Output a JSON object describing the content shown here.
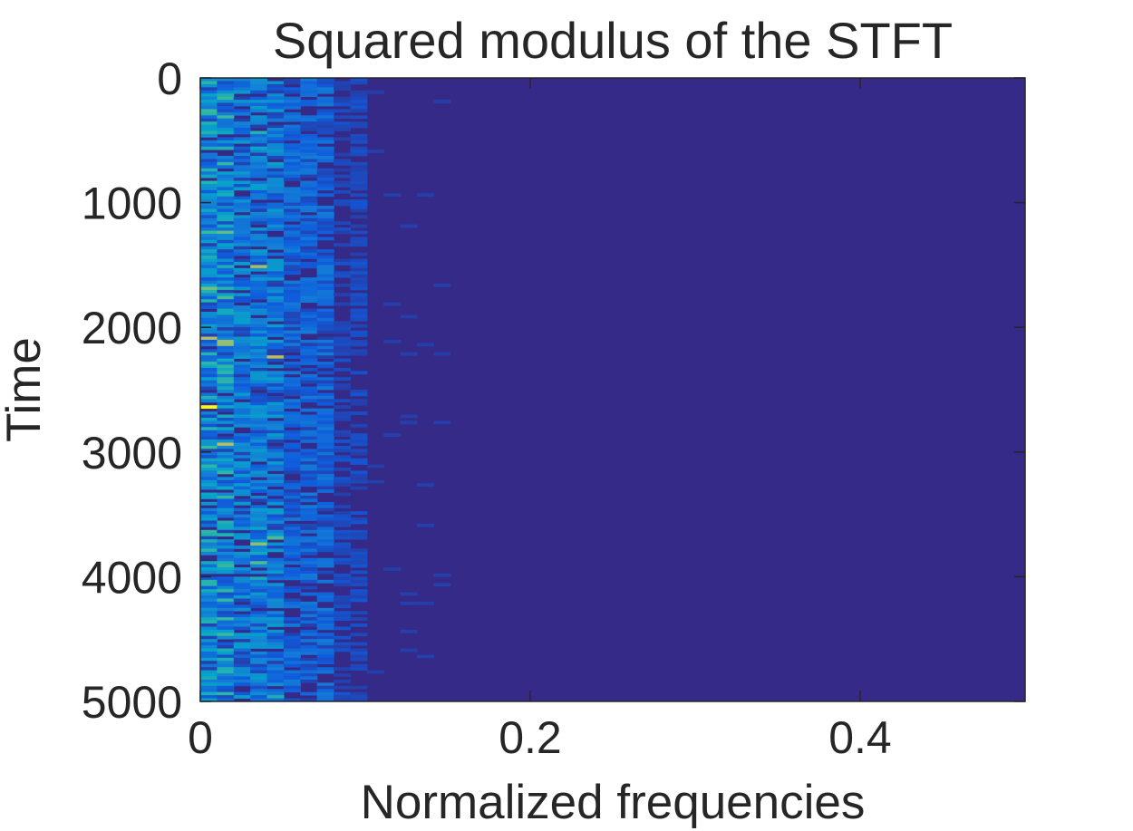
{
  "chart_data": {
    "type": "heatmap",
    "title": "Squared modulus of the STFT",
    "xlabel": "Normalized frequencies",
    "ylabel": "Time",
    "xlim": [
      0,
      0.5
    ],
    "ylim": [
      0,
      5000
    ],
    "y_reversed": true,
    "x_ticks": [
      {
        "value": 0,
        "label": "0"
      },
      {
        "value": 0.2,
        "label": "0.2"
      },
      {
        "value": 0.4,
        "label": "0.4"
      }
    ],
    "y_ticks": [
      {
        "value": 0,
        "label": "0"
      },
      {
        "value": 1000,
        "label": "1000"
      },
      {
        "value": 2000,
        "label": "2000"
      },
      {
        "value": 3000,
        "label": "3000"
      },
      {
        "value": 4000,
        "label": "4000"
      },
      {
        "value": 5000,
        "label": "5000"
      }
    ],
    "grid": false,
    "colormap": "parula",
    "colors": {
      "background": "#352a87",
      "low": "#352a87",
      "mid_low": "#0f5cdd",
      "mid": "#1481d6",
      "mid_high": "#06a4ca",
      "high": "#2eb7a4",
      "very_high": "#87bf77",
      "peak": "#d1bb59",
      "max": "#f9fb0e"
    },
    "energy_profile": {
      "description_bands": [
        {
          "freq_range": [
            0,
            0.1
          ],
          "relative_level": "high"
        },
        {
          "freq_range": [
            0.1,
            0.15
          ],
          "relative_level": "low"
        },
        {
          "freq_range": [
            0.15,
            0.5
          ],
          "relative_level": "none"
        }
      ]
    }
  }
}
